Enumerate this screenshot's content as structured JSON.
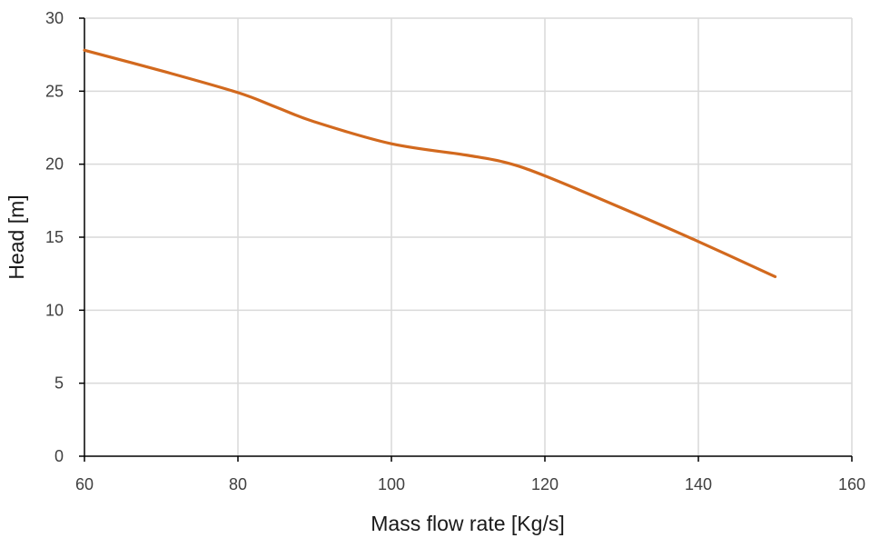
{
  "chart_data": {
    "type": "line",
    "title": "",
    "xlabel": "Mass flow rate [Kg/s]",
    "ylabel": "Head [m]",
    "xlim": [
      60,
      160
    ],
    "ylim": [
      0,
      30
    ],
    "xticks": [
      60,
      80,
      100,
      120,
      140,
      160
    ],
    "yticks": [
      0,
      5,
      10,
      15,
      20,
      25,
      30
    ],
    "grid": true,
    "legend": "none",
    "series": [
      {
        "color": "#d2691e",
        "x": [
          60,
          70,
          80,
          85,
          90,
          100,
          110,
          115,
          120,
          130,
          140,
          150
        ],
        "y": [
          27.8,
          26.4,
          24.9,
          23.9,
          22.9,
          21.4,
          20.6,
          20.1,
          19.2,
          17.0,
          14.7,
          12.3
        ]
      }
    ]
  }
}
